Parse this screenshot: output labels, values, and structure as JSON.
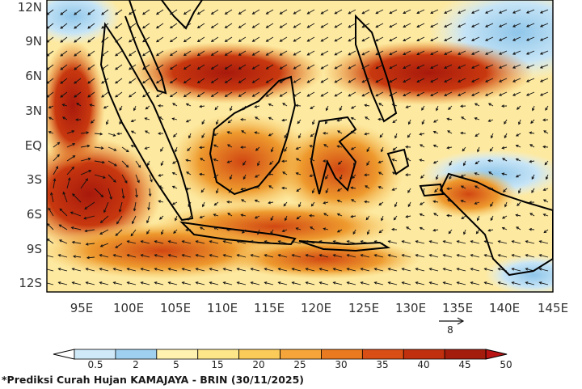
{
  "map": {
    "lat_labels": [
      "12N",
      "9N",
      "6N",
      "3N",
      "EQ",
      "3S",
      "6S",
      "9S",
      "12S"
    ],
    "lon_labels": [
      "95E",
      "100E",
      "105E",
      "110E",
      "115E",
      "120E",
      "125E",
      "130E",
      "135E",
      "140E",
      "145E"
    ],
    "extent": {
      "lon_min": 91,
      "lon_max": 145,
      "lat_min": -13.5,
      "lat_max": 13.5
    },
    "reference_vector": {
      "label": "8",
      "value": 8
    },
    "field": "rainfall",
    "vectors": "wind",
    "vector_color": "#111111",
    "coastline_color": "#000000"
  },
  "colorbar": {
    "ticks": [
      "0.5",
      "2",
      "5",
      "15",
      "20",
      "25",
      "30",
      "35",
      "40",
      "45",
      "50"
    ],
    "colors": [
      "#ffffff",
      "#cfe9f8",
      "#9fd0ef",
      "#fff2b0",
      "#fde58a",
      "#fbcb5a",
      "#f6a53a",
      "#ea7a1f",
      "#d94e14",
      "#c0300e",
      "#a41c0c",
      "#b81414"
    ]
  },
  "caption": "*Prediksi Curah Hujan KAMAJAYA - BRIN (30/11/2025)"
}
